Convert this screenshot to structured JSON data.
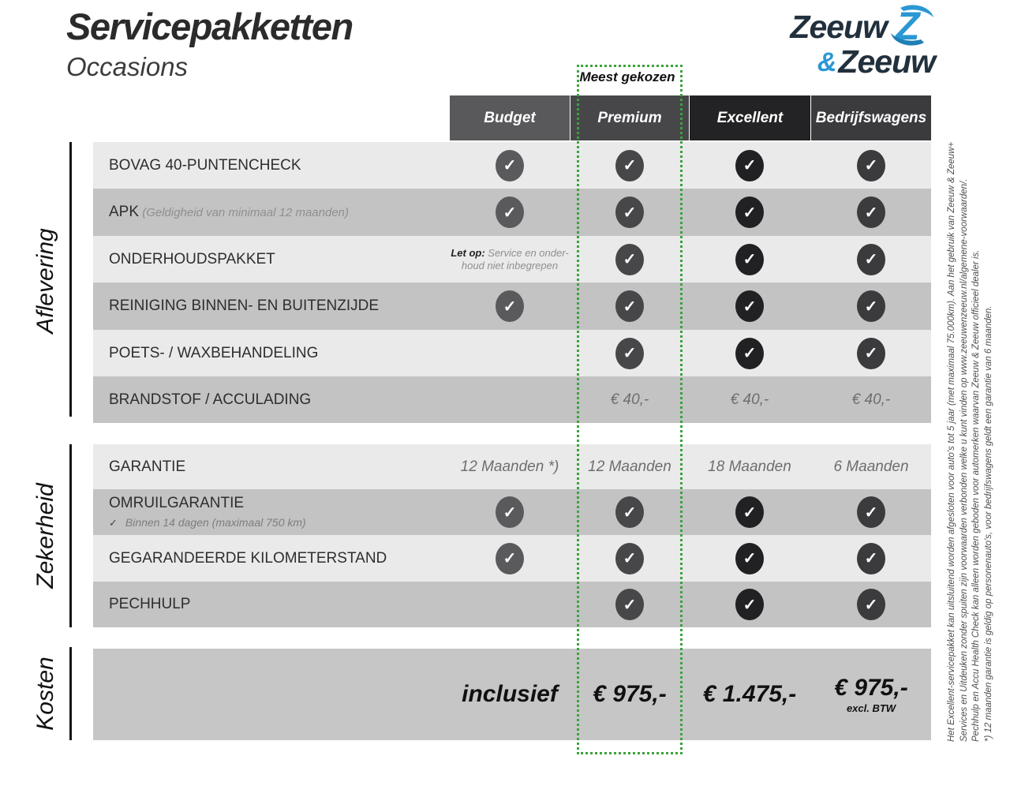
{
  "page": {
    "title": "Servicepakketten",
    "subtitle": "Occasions"
  },
  "logo": {
    "word1": "Zeeuw",
    "amp": "&",
    "word2": "Zeeuw",
    "z_icon": "z-swoosh-icon"
  },
  "colors": {
    "green_dotted": "#3aa33a",
    "header_bg": [
      "#59595b",
      "#47474a",
      "#232325",
      "#3b3b3e"
    ],
    "circle_bg": [
      "#5a5a5d",
      "#47474a",
      "#212124",
      "#3b3b3e"
    ],
    "row_light": "#eaeaea",
    "row_dark": "#c3c3c4",
    "band": "#c6c6c7",
    "logo_navy": "#22303d",
    "logo_blue": "#2b97d3"
  },
  "table": {
    "badge": "Meest gekozen",
    "columns": [
      {
        "label": "Budget"
      },
      {
        "label": "Premium"
      },
      {
        "label": "Excellent"
      },
      {
        "label": "Bedrijfswagens"
      }
    ],
    "sections": [
      {
        "label": "Aflevering",
        "rows": [
          {
            "label": "BOVAG 40-PUNTENCHECK",
            "cells": [
              {
                "type": "check"
              },
              {
                "type": "check"
              },
              {
                "type": "check"
              },
              {
                "type": "check"
              }
            ]
          },
          {
            "label": "APK",
            "note": "(Geldigheid van minimaal 12 maanden)",
            "cells": [
              {
                "type": "check"
              },
              {
                "type": "check"
              },
              {
                "type": "check"
              },
              {
                "type": "check"
              }
            ]
          },
          {
            "label": "ONDERHOUDSPAKKET",
            "cells": [
              {
                "type": "warn",
                "bold": "Let op:",
                "rest": " Service en onder-",
                "line2": "houd niet inbegrepen"
              },
              {
                "type": "check"
              },
              {
                "type": "check"
              },
              {
                "type": "check"
              }
            ]
          },
          {
            "label": "REINIGING BINNEN- EN BUITENZIJDE",
            "cells": [
              {
                "type": "check"
              },
              {
                "type": "check"
              },
              {
                "type": "check"
              },
              {
                "type": "check"
              }
            ]
          },
          {
            "label": "POETS- / WAXBEHANDELING",
            "cells": [
              {
                "type": "empty"
              },
              {
                "type": "check"
              },
              {
                "type": "check"
              },
              {
                "type": "check"
              }
            ]
          },
          {
            "label": "BRANDSTOF / ACCULADING",
            "cells": [
              {
                "type": "empty"
              },
              {
                "type": "text",
                "value": "€ 40,-"
              },
              {
                "type": "text",
                "value": "€ 40,-"
              },
              {
                "type": "text",
                "value": "€ 40,-"
              }
            ]
          }
        ]
      },
      {
        "label": "Zekerheid",
        "rows": [
          {
            "label": "GARANTIE",
            "cells": [
              {
                "type": "text",
                "value": "12 Maanden *)"
              },
              {
                "type": "text",
                "value": "12 Maanden"
              },
              {
                "type": "text",
                "value": "18 Maanden"
              },
              {
                "type": "text",
                "value": "6 Maanden"
              }
            ]
          },
          {
            "label": "OMRUILGARANTIE",
            "sub_check": "✓",
            "sub": "Binnen 14 dagen (maximaal 750 km)",
            "cells": [
              {
                "type": "check"
              },
              {
                "type": "check"
              },
              {
                "type": "check"
              },
              {
                "type": "check"
              }
            ]
          },
          {
            "label": "GEGARANDEERDE KILOMETERSTAND",
            "cells": [
              {
                "type": "check"
              },
              {
                "type": "check"
              },
              {
                "type": "check"
              },
              {
                "type": "check"
              }
            ]
          },
          {
            "label": "PECHHULP",
            "cells": [
              {
                "type": "empty"
              },
              {
                "type": "check"
              },
              {
                "type": "check"
              },
              {
                "type": "check"
              }
            ]
          }
        ]
      }
    ],
    "kosten": {
      "label": "Kosten",
      "cells": [
        {
          "type": "big",
          "value": "inclusief"
        },
        {
          "type": "big",
          "value": "€ 975,-"
        },
        {
          "type": "big",
          "value": "€ 1.475,-"
        },
        {
          "type": "big",
          "value": "€ 975,-",
          "note": "excl. BTW"
        }
      ]
    }
  },
  "footnote": {
    "lines": [
      "Het Excellent-servicepakket kan uitsluitend worden afgesloten voor auto's tot 5 jaar (met maximaal 75.000km). Aan het gebruik van Zeeuw & Zeeuw+",
      "Services en Uitdeuken zonder spuiten zijn voorwaarden verbonden welke u kunt vinden op www.zeeuwenzeeuw.nl/algemene-voorwaarden/.",
      "Pechhulp en Accu Health Check kan alleen worden geboden voor automerken waarvan Zeeuw & Zeeuw officieel dealer is.",
      "*) 12 maanden garantie is geldig op personenauto's, voor bedrijfswagens geldt een garantie van 6 maanden."
    ]
  }
}
